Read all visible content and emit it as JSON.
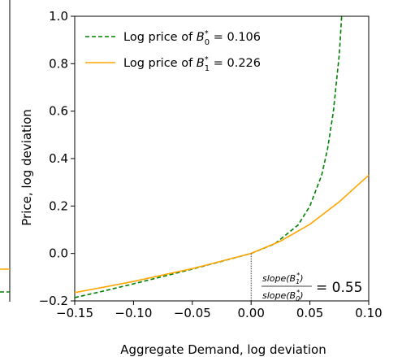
{
  "chart_data": {
    "type": "line",
    "xlabel": "Aggregate Demand, log deviation",
    "ylabel": "Price, log deviation",
    "xlim": [
      -0.15,
      0.1
    ],
    "ylim": [
      -0.2,
      1.0
    ],
    "xticks": [
      "−0.15",
      "−0.10",
      "−0.05",
      "0.00",
      "0.05",
      "0.10"
    ],
    "xtick_values": [
      -0.15,
      -0.1,
      -0.05,
      0.0,
      0.05,
      0.1
    ],
    "yticks": [
      "−0.2",
      "0.0",
      "0.2",
      "0.4",
      "0.6",
      "0.8",
      "1.0"
    ],
    "ytick_values": [
      -0.2,
      0.0,
      0.2,
      0.4,
      0.6,
      0.8,
      1.0
    ],
    "grid": false,
    "legend_position": "top-left",
    "series": [
      {
        "name": "Log price of B0* = 0.106",
        "legend_prefix": "Log price of ",
        "legend_var": "B",
        "legend_sub": "0",
        "legend_sup": "*",
        "legend_value": " = 0.106",
        "color": "#008000",
        "style": "dashed",
        "x": [
          -0.15,
          -0.125,
          -0.1,
          -0.075,
          -0.05,
          -0.025,
          0.0,
          0.02,
          0.04,
          0.05,
          0.06,
          0.065,
          0.07,
          0.075,
          0.077
        ],
        "y": [
          -0.186,
          -0.158,
          -0.128,
          -0.097,
          -0.066,
          -0.033,
          0.0,
          0.04,
          0.12,
          0.2,
          0.33,
          0.44,
          0.6,
          0.84,
          1.0
        ]
      },
      {
        "name": "Log price of B1* = 0.226",
        "legend_prefix": "Log price of ",
        "legend_var": "B",
        "legend_sub": "1",
        "legend_sup": "*",
        "legend_value": " = 0.226",
        "color": "#FFA500",
        "style": "solid",
        "x": [
          -0.15,
          -0.125,
          -0.1,
          -0.075,
          -0.05,
          -0.025,
          0.0,
          0.025,
          0.05,
          0.075,
          0.1
        ],
        "y": [
          -0.165,
          -0.142,
          -0.118,
          -0.091,
          -0.064,
          -0.032,
          0.0,
          0.052,
          0.123,
          0.218,
          0.33
        ]
      }
    ],
    "annotation": {
      "num_prefix": "slope(B",
      "num_sub": "1",
      "num_sup": "*",
      "num_suffix": ")",
      "den_prefix": "slope(B",
      "den_sub": "0",
      "den_sup": "*",
      "den_suffix": ")",
      "value": "= 0.55"
    },
    "reference_line_x": 0.0
  },
  "left_panel": {
    "series_colors": [
      "#FFA500",
      "#008000"
    ],
    "series_y": [
      0.0,
      -0.186
    ]
  }
}
